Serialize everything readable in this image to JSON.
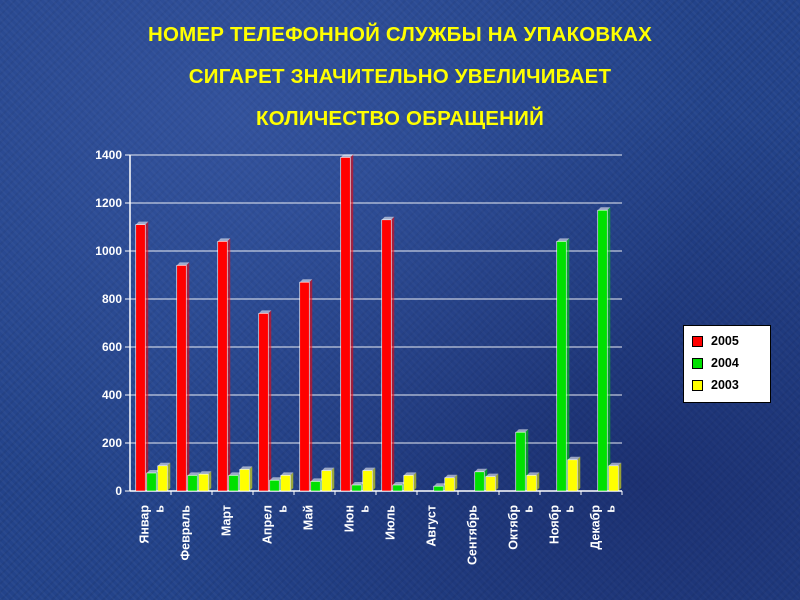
{
  "title": {
    "line1": "НОМЕР ТЕЛЕФОННОЙ СЛУЖБЫ НА УПАКОВКАХ",
    "line2": "СИГАРЕТ ЗНАЧИТЕЛЬНО УВЕЛИЧИВАЕТ",
    "line3": "КОЛИЧЕСТВО ОБРАЩЕНИЙ"
  },
  "colors": {
    "s2005": "#ff0000",
    "s2004": "#00e000",
    "s2003": "#ffff00"
  },
  "chart_data": {
    "type": "bar",
    "title": "НОМЕР ТЕЛЕФОННОЙ СЛУЖБЫ НА УПАКОВКАХ СИГАРЕТ ЗНАЧИТЕЛЬНО УВЕЛИЧИВАЕТ КОЛИЧЕСТВО ОБРАЩЕНИЙ",
    "xlabel": "",
    "ylabel": "",
    "ylim": [
      0,
      1400
    ],
    "yticks": [
      0,
      200,
      400,
      600,
      800,
      1000,
      1200,
      1400
    ],
    "grid": true,
    "legend": "right",
    "categories": [
      "Январь",
      "Февраль",
      "Март",
      "Апрель",
      "Май",
      "Июнь",
      "Июль",
      "Август",
      "Сентябрь",
      "Октябрь",
      "Ноябрь",
      "Декабрь"
    ],
    "category_labels": [
      [
        "Январ",
        "ь"
      ],
      [
        "Февраль"
      ],
      [
        "Март"
      ],
      [
        "Апрел",
        "ь"
      ],
      [
        "Май"
      ],
      [
        "Июн",
        "ь"
      ],
      [
        "Июль"
      ],
      [
        "Август"
      ],
      [
        "Сентябрь"
      ],
      [
        "Октябр",
        "ь"
      ],
      [
        "Ноябр",
        "ь"
      ],
      [
        "Декабр",
        "ь"
      ]
    ],
    "series": [
      {
        "name": "2005",
        "values": [
          1110,
          940,
          1040,
          740,
          870,
          1390,
          1130,
          0,
          0,
          0,
          0,
          0
        ]
      },
      {
        "name": "2004",
        "values": [
          75,
          65,
          65,
          45,
          40,
          25,
          25,
          20,
          80,
          245,
          1040,
          1170
        ]
      },
      {
        "name": "2003",
        "values": [
          105,
          70,
          90,
          65,
          85,
          85,
          65,
          55,
          60,
          65,
          130,
          105
        ]
      }
    ]
  }
}
